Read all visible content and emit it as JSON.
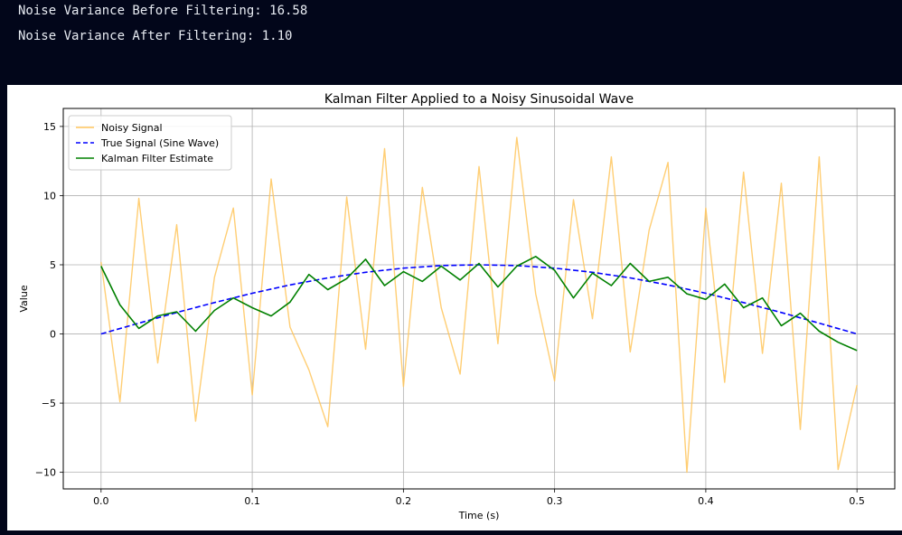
{
  "console": {
    "line1": "Noise Variance Before Filtering: 16.58",
    "line2": "Noise Variance After Filtering: 1.10"
  },
  "chart_data": {
    "type": "line",
    "title": "Kalman Filter Applied to a Noisy Sinusoidal Wave",
    "xlabel": "Time (s)",
    "ylabel": "Value",
    "xlim": [
      -0.025,
      0.525
    ],
    "ylim": [
      -11.2,
      16.3
    ],
    "xticks": [
      0.0,
      0.1,
      0.2,
      0.3,
      0.4,
      0.5
    ],
    "xtick_labels": [
      "0.0",
      "0.1",
      "0.2",
      "0.3",
      "0.4",
      "0.5"
    ],
    "yticks": [
      -10,
      -5,
      0,
      5,
      10,
      15
    ],
    "ytick_labels": [
      "−10",
      "−5",
      "0",
      "5",
      "10",
      "15"
    ],
    "grid": true,
    "legend_position": "top-left",
    "series": [
      {
        "name": "Noisy Signal",
        "color": "#ffc65c",
        "style": "solid",
        "x": [
          0.0,
          0.0125,
          0.025,
          0.0375,
          0.05,
          0.0625,
          0.075,
          0.0875,
          0.1,
          0.1125,
          0.125,
          0.1375,
          0.15,
          0.1625,
          0.175,
          0.1875,
          0.2,
          0.2125,
          0.225,
          0.2375,
          0.25,
          0.2625,
          0.275,
          0.2875,
          0.3,
          0.3125,
          0.325,
          0.3375,
          0.35,
          0.3625,
          0.375,
          0.3875,
          0.4,
          0.4125,
          0.425,
          0.4375,
          0.45,
          0.4625,
          0.475,
          0.4875,
          0.5
        ],
        "y": [
          5.2,
          -4.9,
          9.8,
          -2.1,
          7.9,
          -6.3,
          4.1,
          9.1,
          -4.4,
          11.2,
          0.5,
          -2.6,
          -6.7,
          9.9,
          -1.1,
          13.4,
          -3.8,
          10.6,
          1.9,
          -2.9,
          12.1,
          -0.7,
          14.2,
          2.9,
          -3.4,
          9.7,
          1.1,
          12.8,
          -1.3,
          7.5,
          12.4,
          -10.0,
          9.1,
          -3.5,
          11.7,
          -1.4,
          10.9,
          -6.9,
          12.8,
          -9.8,
          -3.7
        ]
      },
      {
        "name": "True Signal (Sine Wave)",
        "color": "#0000ff",
        "style": "dashed",
        "x": [
          0.0,
          0.025,
          0.05,
          0.075,
          0.1,
          0.125,
          0.15,
          0.175,
          0.2,
          0.225,
          0.25,
          0.275,
          0.3,
          0.325,
          0.35,
          0.375,
          0.4,
          0.425,
          0.45,
          0.475,
          0.5
        ],
        "y": [
          0.0,
          0.78,
          1.55,
          2.27,
          2.94,
          3.54,
          4.05,
          4.46,
          4.76,
          4.94,
          5.0,
          4.94,
          4.76,
          4.46,
          4.05,
          3.54,
          2.94,
          2.27,
          1.55,
          0.78,
          0.0
        ]
      },
      {
        "name": "Kalman Filter Estimate",
        "color": "#008000",
        "style": "solid",
        "x": [
          0.0,
          0.0125,
          0.025,
          0.0375,
          0.05,
          0.0625,
          0.075,
          0.0875,
          0.1,
          0.1125,
          0.125,
          0.1375,
          0.15,
          0.1625,
          0.175,
          0.1875,
          0.2,
          0.2125,
          0.225,
          0.2375,
          0.25,
          0.2625,
          0.275,
          0.2875,
          0.3,
          0.3125,
          0.325,
          0.3375,
          0.35,
          0.3625,
          0.375,
          0.3875,
          0.4,
          0.4125,
          0.425,
          0.4375,
          0.45,
          0.4625,
          0.475,
          0.4875,
          0.5
        ],
        "y": [
          4.9,
          2.1,
          0.4,
          1.3,
          1.6,
          0.2,
          1.7,
          2.6,
          1.9,
          1.3,
          2.3,
          4.3,
          3.2,
          4.0,
          5.4,
          3.5,
          4.5,
          3.8,
          4.9,
          3.9,
          5.1,
          3.4,
          4.9,
          5.6,
          4.6,
          2.6,
          4.4,
          3.5,
          5.1,
          3.8,
          4.1,
          2.9,
          2.5,
          3.6,
          1.9,
          2.6,
          0.6,
          1.5,
          0.2,
          -0.6,
          -1.2
        ]
      }
    ]
  }
}
